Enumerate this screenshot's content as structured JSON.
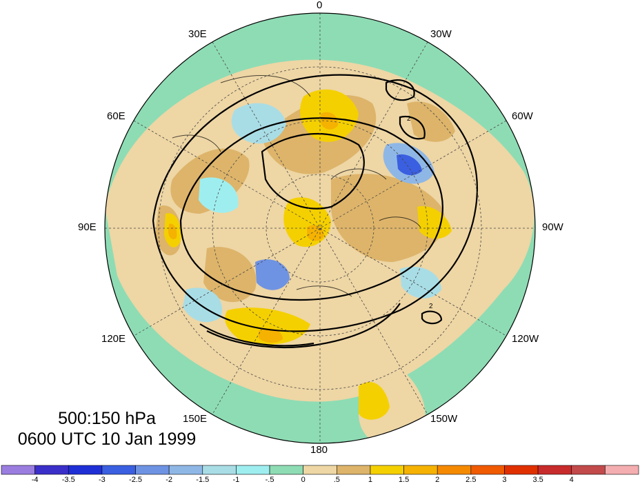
{
  "title": {
    "levels": "500:150 hPa",
    "time": "0600 UTC 10 Jan 1999"
  },
  "longitude_labels": [
    {
      "key": "0",
      "text": "0"
    },
    {
      "key": "30W",
      "text": "30W"
    },
    {
      "key": "60W",
      "text": "60W"
    },
    {
      "key": "90W",
      "text": "90W"
    },
    {
      "key": "120W",
      "text": "120W"
    },
    {
      "key": "150W",
      "text": "150W"
    },
    {
      "key": "180",
      "text": "180"
    },
    {
      "key": "150E",
      "text": "150E"
    },
    {
      "key": "120E",
      "text": "120E"
    },
    {
      "key": "90E",
      "text": "90E"
    },
    {
      "key": "60E",
      "text": "60E"
    },
    {
      "key": "30E",
      "text": "30E"
    }
  ],
  "colorbar": {
    "colors": [
      "#9b7de0",
      "#3b2fc9",
      "#1f2fd6",
      "#3a5fe0",
      "#6f93e3",
      "#8fb7e6",
      "#a9dde6",
      "#9feeef",
      "#8edcb4",
      "#eed6a5",
      "#ddb46a",
      "#f5d000",
      "#f5b200",
      "#f58a00",
      "#f05a00",
      "#e03000",
      "#c82b2b",
      "#c24a4a",
      "#f4aeb0"
    ],
    "tick_labels": [
      "-4",
      "-3.5",
      "-3",
      "-2.5",
      "-2",
      "-1.5",
      "-1",
      "-.5",
      "0",
      ".5",
      "1",
      "1.5",
      "2",
      "2.5",
      "3",
      "3.5",
      "4"
    ]
  },
  "contour_labels": {
    "two": "2"
  }
}
